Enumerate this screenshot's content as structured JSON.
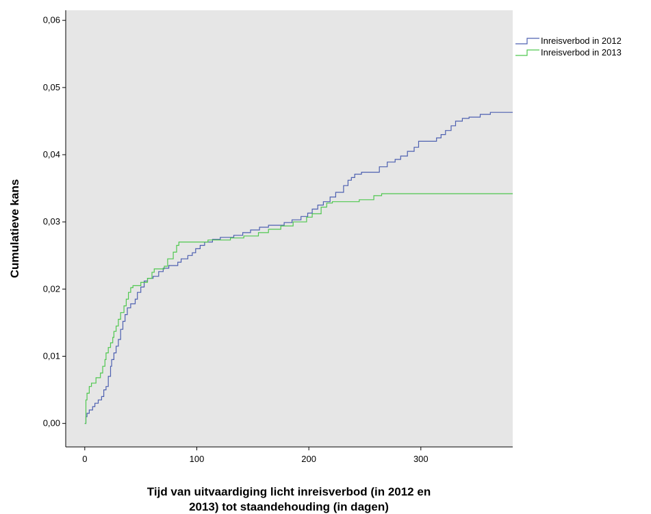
{
  "chart_data": {
    "type": "line",
    "step": true,
    "title": "",
    "xlabel": "Tijd van uitvaardiging licht inreisverbod (in 2012 en 2013) tot staandehouding (in dagen)",
    "xlabel_lines": [
      "Tijd van uitvaardiging licht inreisverbod (in 2012 en",
      "2013) tot staandehouding (in dagen)"
    ],
    "ylabel": "Cumulatieve kans",
    "xlim": [
      -17,
      382
    ],
    "ylim": [
      -0.0035,
      0.0615
    ],
    "xticks": [
      0,
      100,
      200,
      300
    ],
    "xtick_labels": [
      "0",
      "100",
      "200",
      "300"
    ],
    "yticks": [
      0,
      0.01,
      0.02,
      0.03,
      0.04,
      0.05,
      0.06
    ],
    "ytick_labels": [
      "0,00",
      "0,01",
      "0,02",
      "0,03",
      "0,04",
      "0,05",
      "0,06"
    ],
    "grid": false,
    "background": "#e6e6e6",
    "legend": "right",
    "series": [
      {
        "name": "Inreisverbod in 2012",
        "color": "#4c5fb0",
        "points": [
          [
            0,
            0
          ],
          [
            1,
            0.001
          ],
          [
            2,
            0.0015
          ],
          [
            4,
            0.002
          ],
          [
            7,
            0.0025
          ],
          [
            9,
            0.003
          ],
          [
            12,
            0.0035
          ],
          [
            15,
            0.004
          ],
          [
            17,
            0.005
          ],
          [
            19,
            0.0055
          ],
          [
            21,
            0.007
          ],
          [
            23,
            0.0085
          ],
          [
            24,
            0.0095
          ],
          [
            26,
            0.0105
          ],
          [
            28,
            0.0115
          ],
          [
            30,
            0.0125
          ],
          [
            32,
            0.014
          ],
          [
            34,
            0.0152
          ],
          [
            36,
            0.0162
          ],
          [
            38,
            0.0172
          ],
          [
            41,
            0.0178
          ],
          [
            45,
            0.0185
          ],
          [
            47,
            0.0195
          ],
          [
            50,
            0.0203
          ],
          [
            53,
            0.0212
          ],
          [
            56,
            0.0216
          ],
          [
            61,
            0.0219
          ],
          [
            66,
            0.0226
          ],
          [
            70,
            0.0231
          ],
          [
            75,
            0.0235
          ],
          [
            83,
            0.024
          ],
          [
            86,
            0.0245
          ],
          [
            92,
            0.025
          ],
          [
            96,
            0.0254
          ],
          [
            99,
            0.026
          ],
          [
            103,
            0.0265
          ],
          [
            107,
            0.027
          ],
          [
            114,
            0.0274
          ],
          [
            121,
            0.0277
          ],
          [
            133,
            0.028
          ],
          [
            141,
            0.0284
          ],
          [
            148,
            0.0288
          ],
          [
            156,
            0.0292
          ],
          [
            164,
            0.0295
          ],
          [
            178,
            0.0299
          ],
          [
            185,
            0.0303
          ],
          [
            193,
            0.0308
          ],
          [
            199,
            0.0313
          ],
          [
            203,
            0.0319
          ],
          [
            208,
            0.0325
          ],
          [
            213,
            0.033
          ],
          [
            219,
            0.0337
          ],
          [
            224,
            0.0344
          ],
          [
            231,
            0.0354
          ],
          [
            235,
            0.0362
          ],
          [
            238,
            0.0366
          ],
          [
            241,
            0.0371
          ],
          [
            247,
            0.0374
          ],
          [
            260,
            0.0374
          ],
          [
            263,
            0.0382
          ],
          [
            270,
            0.0389
          ],
          [
            277,
            0.0393
          ],
          [
            282,
            0.0398
          ],
          [
            288,
            0.0405
          ],
          [
            294,
            0.0411
          ],
          [
            298,
            0.042
          ],
          [
            310,
            0.042
          ],
          [
            314,
            0.0425
          ],
          [
            318,
            0.043
          ],
          [
            322,
            0.0436
          ],
          [
            327,
            0.0443
          ],
          [
            331,
            0.045
          ],
          [
            337,
            0.0454
          ],
          [
            343,
            0.0456
          ],
          [
            353,
            0.046
          ],
          [
            362,
            0.0463
          ],
          [
            382,
            0.0463
          ]
        ]
      },
      {
        "name": "Inreisverbod in 2013",
        "color": "#4ec74e",
        "points": [
          [
            0,
            0
          ],
          [
            1,
            0.0035
          ],
          [
            2,
            0.0045
          ],
          [
            4,
            0.0055
          ],
          [
            6,
            0.006
          ],
          [
            10,
            0.0068
          ],
          [
            14,
            0.0075
          ],
          [
            16,
            0.0085
          ],
          [
            18,
            0.0095
          ],
          [
            19,
            0.0105
          ],
          [
            21,
            0.0113
          ],
          [
            23,
            0.012
          ],
          [
            25,
            0.0128
          ],
          [
            26,
            0.0137
          ],
          [
            28,
            0.0145
          ],
          [
            30,
            0.0155
          ],
          [
            32,
            0.0165
          ],
          [
            35,
            0.0175
          ],
          [
            37,
            0.0185
          ],
          [
            39,
            0.0195
          ],
          [
            41,
            0.0202
          ],
          [
            43,
            0.0205
          ],
          [
            50,
            0.021
          ],
          [
            56,
            0.0216
          ],
          [
            60,
            0.0225
          ],
          [
            62,
            0.023
          ],
          [
            71,
            0.0234
          ],
          [
            74,
            0.0245
          ],
          [
            79,
            0.0255
          ],
          [
            82,
            0.0265
          ],
          [
            84,
            0.027
          ],
          [
            110,
            0.0273
          ],
          [
            130,
            0.0276
          ],
          [
            142,
            0.0279
          ],
          [
            155,
            0.0284
          ],
          [
            164,
            0.0289
          ],
          [
            175,
            0.0294
          ],
          [
            186,
            0.03
          ],
          [
            198,
            0.0307
          ],
          [
            203,
            0.0312
          ],
          [
            211,
            0.0322
          ],
          [
            216,
            0.0328
          ],
          [
            221,
            0.033
          ],
          [
            245,
            0.0333
          ],
          [
            258,
            0.0339
          ],
          [
            265,
            0.0342
          ],
          [
            382,
            0.0342
          ]
        ]
      }
    ]
  }
}
